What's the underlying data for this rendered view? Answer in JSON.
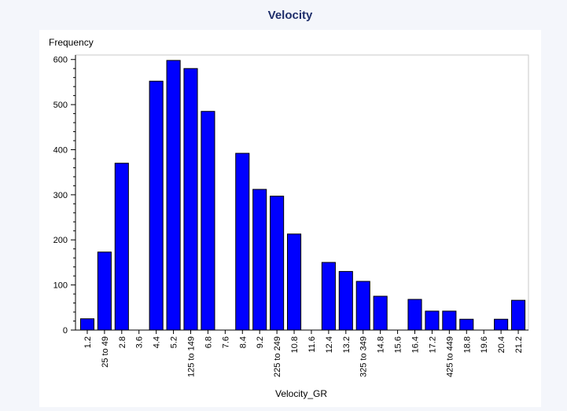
{
  "chart_data": {
    "type": "bar",
    "title": "Velocity",
    "xlabel": "Velocity_GR",
    "ylabel": "Frequency",
    "ylim": [
      0,
      610
    ],
    "yticks": [
      0,
      100,
      200,
      300,
      400,
      500,
      600
    ],
    "grid": false,
    "categories": [
      "1.2",
      "25 to 49",
      "2.8",
      "3.6",
      "4.4",
      "5.2",
      "125 to 149",
      "6.8",
      "7.6",
      "8.4",
      "9.2",
      "225 to 249",
      "10.8",
      "11.6",
      "12.4",
      "13.2",
      "325 to 349",
      "14.8",
      "15.6",
      "16.4",
      "17.2",
      "425 to 449",
      "18.8",
      "19.6",
      "20.4",
      "21.2"
    ],
    "values": [
      25,
      173,
      370,
      0,
      552,
      598,
      580,
      485,
      0,
      392,
      312,
      297,
      213,
      0,
      150,
      130,
      108,
      75,
      0,
      68,
      42,
      42,
      24,
      0,
      24,
      66
    ],
    "bar_color": "#0000ff",
    "bar_edge": "#000000"
  }
}
